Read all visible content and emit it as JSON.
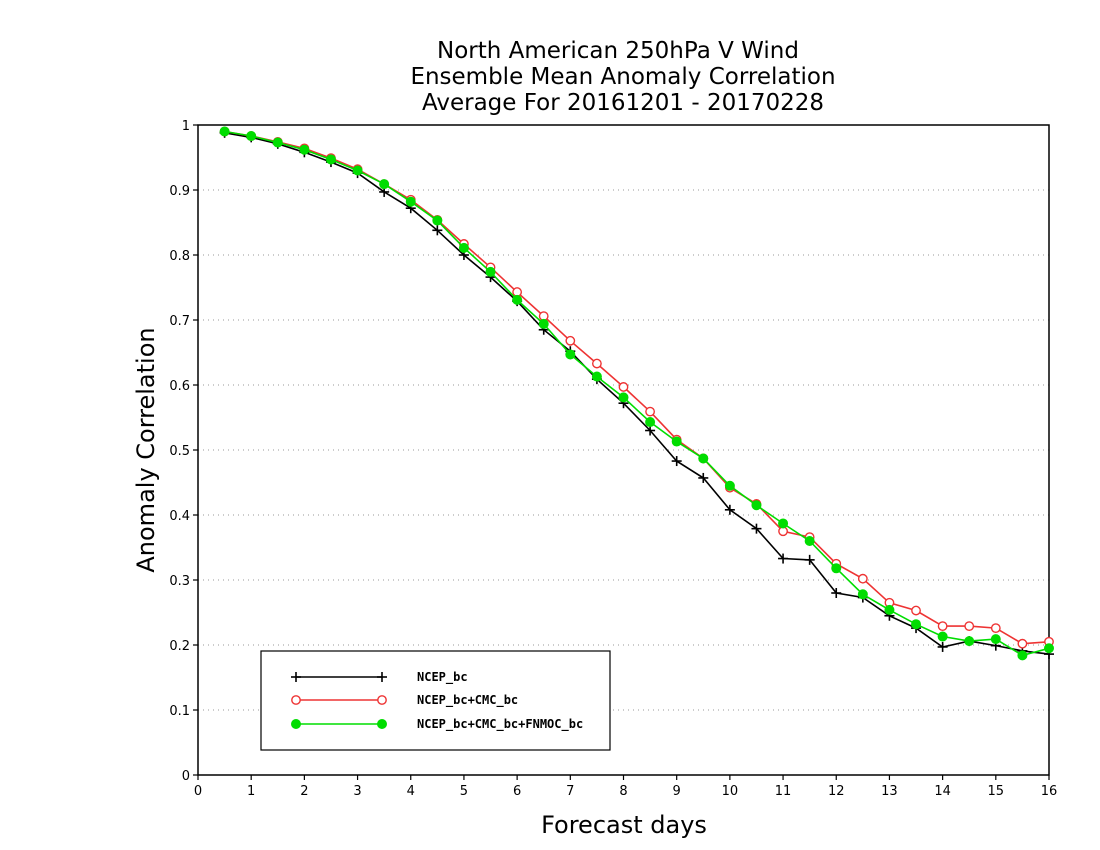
{
  "chart_data": {
    "type": "line",
    "title": [
      "North American 250hPa V Wind",
      "Ensemble Mean Anomaly Correlation",
      "Average For 20161201 - 20170228"
    ],
    "xlabel": "Forecast days",
    "ylabel": "Anomaly Correlation",
    "xlim": [
      0,
      16
    ],
    "ylim": [
      0,
      1
    ],
    "x_ticks": [
      "0",
      "1",
      "2",
      "3",
      "4",
      "5",
      "6",
      "7",
      "8",
      "9",
      "10",
      "11",
      "12",
      "13",
      "14",
      "15",
      "16"
    ],
    "y_ticks": [
      "0",
      "0.1",
      "0.2",
      "0.3",
      "0.4",
      "0.5",
      "0.6",
      "0.7",
      "0.8",
      "0.9",
      "1"
    ],
    "grid": "horizontal dotted",
    "legend_position": "bottom-left",
    "x": [
      0.5,
      1,
      1.5,
      2,
      2.5,
      3,
      3.5,
      4,
      4.5,
      5,
      5.5,
      6,
      6.5,
      7,
      7.5,
      8,
      8.5,
      9,
      9.5,
      10,
      10.5,
      11,
      11.5,
      12,
      12.5,
      13,
      13.5,
      14,
      14.5,
      15,
      15.5,
      16
    ],
    "series": [
      {
        "name": "NCEP_bc",
        "color": "#000000",
        "marker": "plus",
        "values": [
          0.988,
          0.981,
          0.971,
          0.958,
          0.943,
          0.926,
          0.897,
          0.872,
          0.838,
          0.8,
          0.766,
          0.729,
          0.685,
          0.652,
          0.609,
          0.572,
          0.53,
          0.483,
          0.457,
          0.408,
          0.379,
          0.333,
          0.331,
          0.28,
          0.273,
          0.245,
          0.226,
          0.197,
          0.206,
          0.199,
          0.191,
          0.186
        ]
      },
      {
        "name": "NCEP_bc+CMC_bc",
        "color": "#ee3333",
        "marker": "open-circle",
        "values": [
          0.99,
          0.983,
          0.974,
          0.964,
          0.949,
          0.932,
          0.909,
          0.885,
          0.854,
          0.817,
          0.781,
          0.743,
          0.706,
          0.668,
          0.633,
          0.597,
          0.559,
          0.516,
          0.487,
          0.442,
          0.417,
          0.375,
          0.366,
          0.325,
          0.302,
          0.265,
          0.253,
          0.229,
          0.229,
          0.226,
          0.202,
          0.205
        ]
      },
      {
        "name": "NCEP_bc+CMC_bc+FNMOC_bc",
        "color": "#00dd00",
        "marker": "filled-circle",
        "values": [
          0.99,
          0.983,
          0.973,
          0.962,
          0.947,
          0.93,
          0.909,
          0.882,
          0.853,
          0.811,
          0.774,
          0.731,
          0.694,
          0.647,
          0.613,
          0.581,
          0.543,
          0.513,
          0.487,
          0.445,
          0.415,
          0.387,
          0.36,
          0.318,
          0.278,
          0.254,
          0.232,
          0.213,
          0.206,
          0.209,
          0.184,
          0.195
        ]
      }
    ]
  }
}
